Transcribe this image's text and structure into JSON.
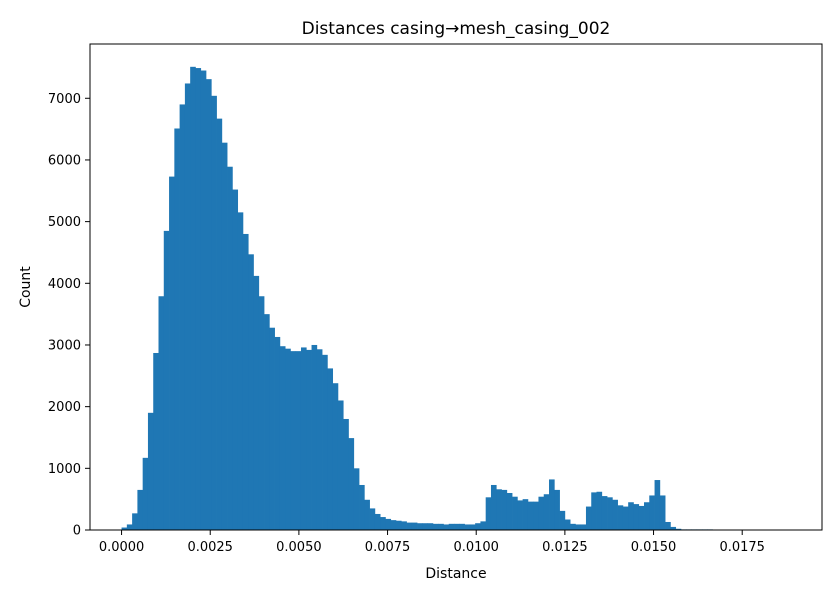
{
  "chart_data": {
    "type": "bar",
    "title": "Distances casing→mesh_casing_002",
    "xlabel": "Distance",
    "ylabel": "Count",
    "xlim": [
      -0.00089,
      0.01975
    ],
    "ylim": [
      0,
      7880
    ],
    "xticks": [
      0.0,
      0.0025,
      0.005,
      0.0075,
      0.01,
      0.0125,
      0.015,
      0.0175
    ],
    "xtick_labels": [
      "0.0000",
      "0.0025",
      "0.0050",
      "0.0075",
      "0.0100",
      "0.0125",
      "0.0150",
      "0.0175"
    ],
    "yticks": [
      0,
      1000,
      2000,
      3000,
      4000,
      5000,
      6000,
      7000
    ],
    "ytick_labels": [
      "0",
      "1000",
      "2000",
      "3000",
      "4000",
      "5000",
      "6000",
      "7000"
    ],
    "grid": false,
    "bar_color": "#1f77b4",
    "bin_start": 0.0,
    "bin_width": 0.0001488,
    "values": [
      40,
      90,
      270,
      650,
      1170,
      1900,
      2870,
      3790,
      4850,
      5730,
      6510,
      6900,
      7240,
      7510,
      7490,
      7450,
      7310,
      7040,
      6670,
      6280,
      5890,
      5520,
      5150,
      4800,
      4470,
      4120,
      3790,
      3500,
      3280,
      3130,
      2980,
      2940,
      2900,
      2900,
      2960,
      2920,
      3000,
      2930,
      2840,
      2620,
      2380,
      2100,
      1800,
      1490,
      1000,
      730,
      490,
      350,
      260,
      210,
      180,
      160,
      150,
      140,
      120,
      120,
      110,
      110,
      110,
      100,
      100,
      90,
      100,
      100,
      100,
      90,
      90,
      110,
      140,
      530,
      730,
      660,
      650,
      600,
      540,
      480,
      500,
      460,
      460,
      540,
      580,
      820,
      650,
      310,
      170,
      100,
      90,
      90,
      380,
      610,
      620,
      550,
      530,
      490,
      400,
      380,
      450,
      420,
      390,
      450,
      560,
      810,
      560,
      130,
      50,
      20,
      10,
      10,
      10,
      10,
      10,
      10
    ]
  }
}
